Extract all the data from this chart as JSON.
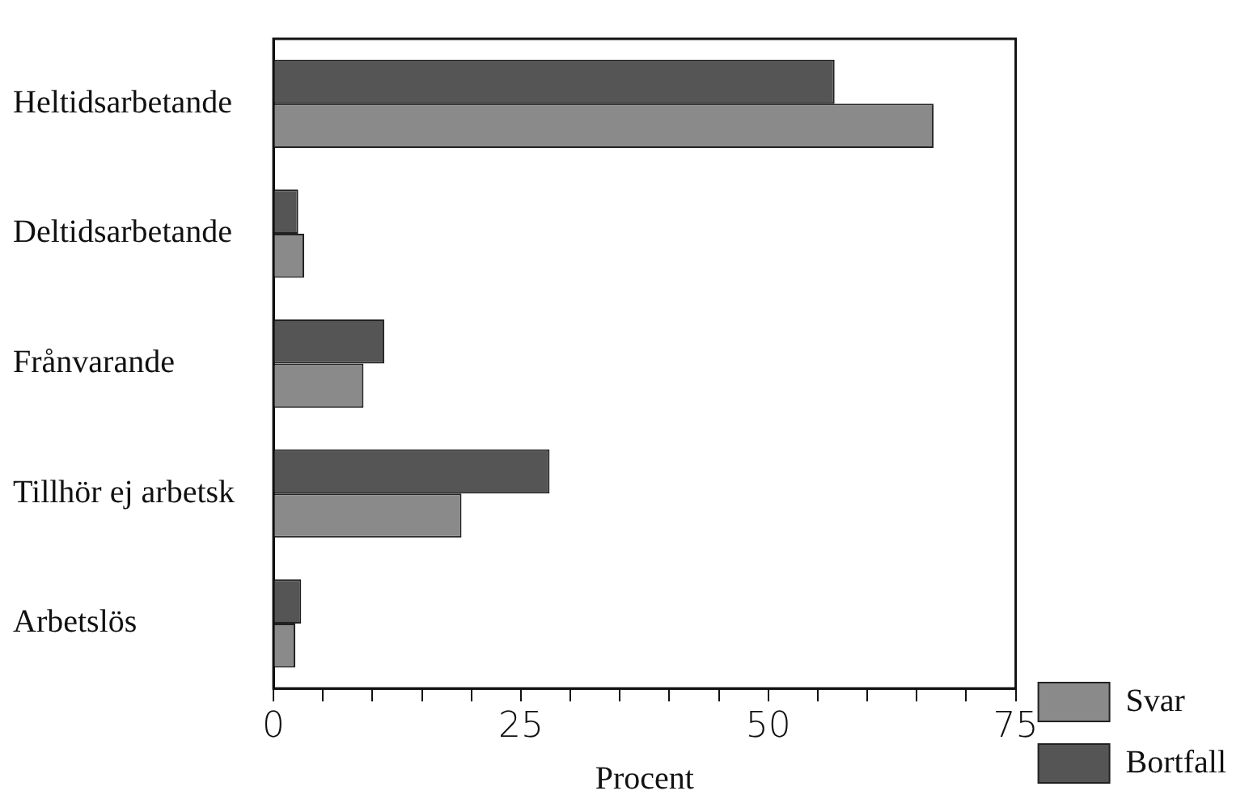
{
  "chart_data": {
    "type": "bar",
    "orientation": "horizontal",
    "xlabel": "Procent",
    "categories": [
      "Heltidsarbetande",
      "Deltidsarbetande",
      "Frånvarande",
      "Tillhör ej arbetsk",
      "Arbetslös"
    ],
    "series": [
      {
        "name": "Bortfall",
        "color": "#555555",
        "values": [
          56.7,
          2.5,
          11.2,
          27.9,
          2.8
        ]
      },
      {
        "name": "Svar",
        "color": "#8a8a8a",
        "values": [
          66.7,
          3.1,
          9.1,
          19,
          2.2
        ]
      }
    ],
    "xlim": [
      0,
      75
    ],
    "xticks": [
      0,
      {
        "value": 5,
        "label": null
      },
      {
        "value": 10,
        "label": null
      },
      {
        "value": 15,
        "label": null
      },
      {
        "value": 20,
        "label": null
      },
      25,
      {
        "value": 30,
        "label": null
      },
      {
        "value": 35,
        "label": null
      },
      {
        "value": 40,
        "label": null
      },
      {
        "value": 45,
        "label": null
      },
      50,
      {
        "value": 55,
        "label": null
      },
      {
        "value": 60,
        "label": null
      },
      {
        "value": 65,
        "label": null
      },
      {
        "value": 70,
        "label": null
      },
      75
    ],
    "legend": "bottom right",
    "grid": false
  }
}
